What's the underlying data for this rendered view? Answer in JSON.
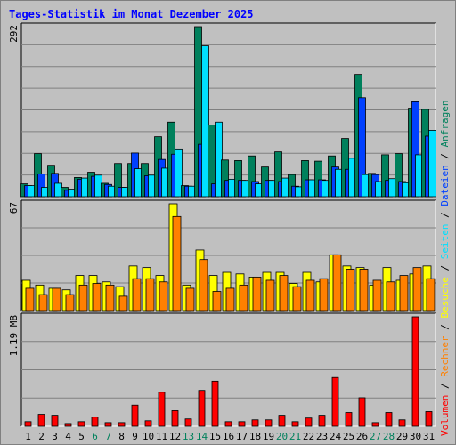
{
  "chart_data": {
    "type": "bar",
    "title": "Tages-Statistik im Monat Dezember 2025",
    "days": [
      {
        "label": "1",
        "weekend": false
      },
      {
        "label": "2",
        "weekend": false
      },
      {
        "label": "3",
        "weekend": false
      },
      {
        "label": "4",
        "weekend": false
      },
      {
        "label": "5",
        "weekend": false
      },
      {
        "label": "6",
        "weekend": true
      },
      {
        "label": "7",
        "weekend": true
      },
      {
        "label": "8",
        "weekend": false
      },
      {
        "label": "9",
        "weekend": false
      },
      {
        "label": "10",
        "weekend": false
      },
      {
        "label": "11",
        "weekend": false
      },
      {
        "label": "12",
        "weekend": false
      },
      {
        "label": "13",
        "weekend": true
      },
      {
        "label": "14",
        "weekend": true
      },
      {
        "label": "15",
        "weekend": false
      },
      {
        "label": "16",
        "weekend": false
      },
      {
        "label": "17",
        "weekend": false
      },
      {
        "label": "18",
        "weekend": false
      },
      {
        "label": "19",
        "weekend": false
      },
      {
        "label": "20",
        "weekend": true
      },
      {
        "label": "21",
        "weekend": true
      },
      {
        "label": "22",
        "weekend": false
      },
      {
        "label": "23",
        "weekend": false
      },
      {
        "label": "24",
        "weekend": false
      },
      {
        "label": "25",
        "weekend": false
      },
      {
        "label": "26",
        "weekend": false
      },
      {
        "label": "27",
        "weekend": true
      },
      {
        "label": "28",
        "weekend": true
      },
      {
        "label": "29",
        "weekend": false
      },
      {
        "label": "30",
        "weekend": false
      },
      {
        "label": "31",
        "weekend": false
      }
    ],
    "panels": [
      {
        "id": "requests",
        "max_label": "292",
        "max": 292,
        "series": [
          {
            "name": "Anfragen",
            "color": "#00805c",
            "values": [
              22,
              74,
              54,
              16,
              33,
              42,
              23,
              57,
              57,
              57,
              103,
              128,
              19,
              292,
              123,
              63,
              62,
              70,
              51,
              77,
              38,
              62,
              61,
              70,
              100,
              210,
              40,
              72,
              74,
              152,
              150
            ]
          },
          {
            "name": "Dateien",
            "color": "#0040ff",
            "values": [
              19,
              39,
              40,
              11,
              30,
              35,
              21,
              16,
              75,
              36,
              64,
              73,
              18,
              90,
              22,
              28,
              28,
              26,
              28,
              26,
              18,
              29,
              29,
              51,
              47,
              170,
              38,
              28,
              26,
              163,
              104
            ]
          },
          {
            "name": "Seiten",
            "color": "#00e0ff",
            "values": [
              19,
              16,
              23,
              13,
              32,
              37,
              18,
              16,
              48,
              37,
              49,
              82,
              18,
              259,
              128,
              30,
              28,
              22,
              28,
              32,
              17,
              29,
              28,
              47,
              66,
              38,
              26,
              31,
              24,
              72,
              114
            ]
          }
        ]
      },
      {
        "id": "visits",
        "max_label": "67",
        "max": 67,
        "series": [
          {
            "name": "Besuche",
            "color": "#ffff00",
            "values": [
              19,
              16,
              14,
              13,
              22,
              22,
              18,
              15,
              28,
              27,
              22,
              67,
              16,
              38,
              22,
              24,
              23,
              21,
              24,
              24,
              17,
              24,
              18,
              35,
              28,
              27,
              16,
              27,
              19,
              23,
              28
            ]
          },
          {
            "name": "Rechner",
            "color": "#ff8000",
            "values": [
              14,
              10,
              14,
              10,
              16,
              17,
              16,
              9,
              20,
              20,
              18,
              59,
              14,
              32,
              12,
              14,
              16,
              21,
              19,
              22,
              15,
              19,
              20,
              35,
              26,
              26,
              19,
              18,
              22,
              27,
              20
            ]
          }
        ]
      },
      {
        "id": "volume",
        "max_label": "1.19 MB",
        "max": 1.19,
        "series": [
          {
            "name": "Volumen",
            "color": "#ff0000",
            "values": [
              0.05,
              0.13,
              0.12,
              0.03,
              0.05,
              0.1,
              0.04,
              0.04,
              0.23,
              0.06,
              0.37,
              0.17,
              0.08,
              0.39,
              0.49,
              0.05,
              0.05,
              0.07,
              0.07,
              0.12,
              0.05,
              0.09,
              0.12,
              0.53,
              0.15,
              0.31,
              0.04,
              0.15,
              0.07,
              1.19,
              0.16
            ]
          }
        ]
      }
    ],
    "legend_right": [
      {
        "name": "Volumen",
        "color": "#ff0000"
      },
      {
        "name": "Rechner",
        "color": "#ff8000"
      },
      {
        "name": "Besuche",
        "color": "#ffff00"
      },
      {
        "name": "Seiten",
        "color": "#00e0ff"
      },
      {
        "name": "Dateien",
        "color": "#0040ff"
      },
      {
        "name": "Anfragen",
        "color": "#00805c"
      }
    ],
    "separator": "/",
    "weekday_label_color": "#000000",
    "weekend_label_color": "#00805c",
    "title_color": "#0000ff",
    "background": "#c0c0c0",
    "grid": true
  }
}
